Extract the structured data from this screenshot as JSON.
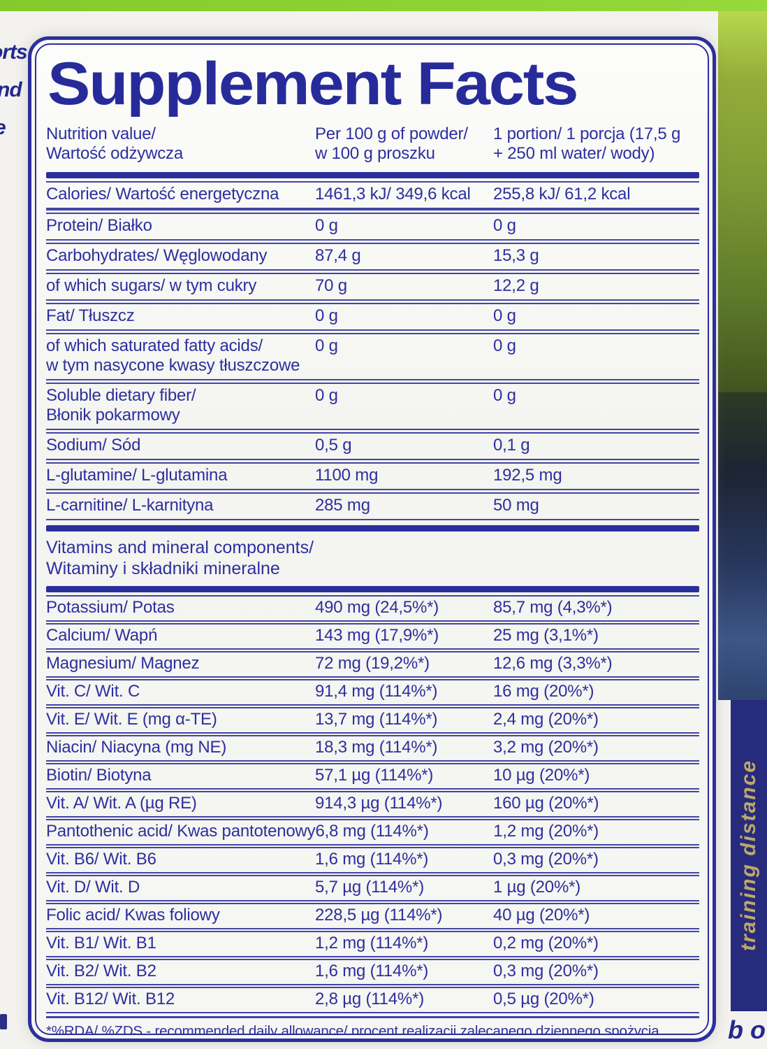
{
  "title": "Supplement Facts",
  "header": {
    "col1_line1": "Nutrition value/",
    "col1_line2": "Wartość odżywcza",
    "col2_line1": "Per 100 g of powder/",
    "col2_line2": "w 100 g proszku",
    "col3_line1": "1 portion/ 1 porcja (17,5 g",
    "col3_line2": "+ 250 ml water/ wody)"
  },
  "nutrition_rows": [
    {
      "label": "Calories/ Wartość energetyczna",
      "per100": "1461,3 kJ/ 349,6 kcal",
      "portion": "255,8 kJ/ 61,2 kcal",
      "emphasis": true
    },
    {
      "label": "Protein/ Białko",
      "per100": "0 g",
      "portion": "0 g"
    },
    {
      "label": "Carbohydrates/ Węglowodany",
      "per100": "87,4 g",
      "portion": "15,3 g"
    },
    {
      "label": "of which sugars/ w tym cukry",
      "per100": "70 g",
      "portion": "12,2 g"
    },
    {
      "label": "Fat/ Tłuszcz",
      "per100": "0 g",
      "portion": "0 g"
    },
    {
      "label": "of which saturated fatty acids/",
      "label2": "w tym nasycone kwasy tłuszczowe",
      "per100": "0 g",
      "portion": "0 g"
    },
    {
      "label": "Soluble dietary fiber/",
      "label2": "Błonik pokarmowy",
      "per100": "0 g",
      "portion": "0 g"
    },
    {
      "label": "Sodium/ Sód",
      "per100": "0,5 g",
      "portion": "0,1 g"
    },
    {
      "label": "L-glutamine/ L-glutamina",
      "per100": "1100 mg",
      "portion": "192,5 mg"
    },
    {
      "label": "L-carnitine/ L-karnityna",
      "per100": "285 mg",
      "portion": "50 mg"
    }
  ],
  "vitamins_section": {
    "line1": "Vitamins and mineral components/",
    "line2": "Witaminy i składniki mineralne"
  },
  "vitamin_rows": [
    {
      "label": "Potassium/ Potas",
      "per100": "490 mg (24,5%*)",
      "portion": "85,7 mg (4,3%*)"
    },
    {
      "label": "Calcium/ Wapń",
      "per100": "143 mg (17,9%*)",
      "portion": "25 mg (3,1%*)"
    },
    {
      "label": "Magnesium/ Magnez",
      "per100": "72 mg (19,2%*)",
      "portion": "12,6 mg (3,3%*)"
    },
    {
      "label": "Vit. C/ Wit. C",
      "per100": "91,4 mg (114%*)",
      "portion": "16 mg (20%*)"
    },
    {
      "label": "Vit. E/ Wit. E (mg α-TE)",
      "per100": "13,7 mg (114%*)",
      "portion": "2,4 mg (20%*)"
    },
    {
      "label": "Niacin/ Niacyna (mg NE)",
      "per100": "18,3 mg (114%*)",
      "portion": "3,2 mg (20%*)"
    },
    {
      "label": "Biotin/ Biotyna",
      "per100": "57,1 µg (114%*)",
      "portion": "10 µg (20%*)"
    },
    {
      "label": "Vit. A/ Wit. A (µg RE)",
      "per100": "914,3 µg (114%*)",
      "portion": "160 µg (20%*)"
    },
    {
      "label": "Pantothenic acid/ Kwas pantotenowy",
      "per100": "6,8 mg (114%*)",
      "portion": "1,2 mg (20%*)"
    },
    {
      "label": "Vit. B6/ Wit. B6",
      "per100": "1,6 mg (114%*)",
      "portion": "0,3 mg (20%*)"
    },
    {
      "label": "Vit. D/ Wit. D",
      "per100": "5,7 µg (114%*)",
      "portion": "1 µg (20%*)"
    },
    {
      "label": "Folic acid/ Kwas foliowy",
      "per100": "228,5 µg (114%*)",
      "portion": "40 µg (20%*)"
    },
    {
      "label": "Vit. B1/ Wit. B1",
      "per100": "1,2 mg (114%*)",
      "portion": "0,2 mg (20%*)"
    },
    {
      "label": "Vit. B2/ Wit. B2",
      "per100": "1,6 mg (114%*)",
      "portion": "0,3 mg (20%*)"
    },
    {
      "label": "Vit. B12/ Wit. B12",
      "per100": "2,8 µg (114%*)",
      "portion": "0,5 µg (20%*)"
    }
  ],
  "footnote": "*%RDA/ %ZDS - recommended daily allowance/ procent realizacji zalecanego dziennego spożycia",
  "surroundings": {
    "left_fragments": [
      "orts",
      "nd",
      "e"
    ],
    "vertical_band_text": "training distance",
    "bottom_right_fragment": "b o"
  },
  "colors": {
    "ink": "#2d2f9f",
    "line": "#4245a5",
    "bar": "#2b2f9c",
    "green": "#8ccd2f",
    "label-bg": "#f7f7f4",
    "band-bg": "#262b7e",
    "band-text": "#bfa868"
  }
}
